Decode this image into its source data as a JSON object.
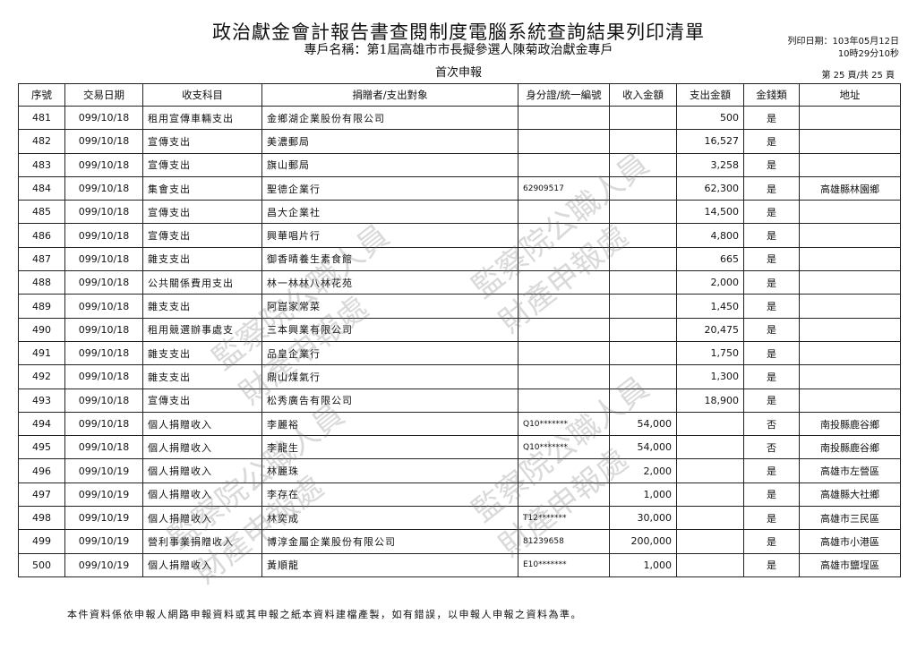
{
  "header": {
    "title": "政治獻金會計報告書查閱制度電腦系統查詢結果列印清單",
    "subtitle": "專戶名稱：第1屆高雄市市長擬參選人陳菊政治獻金專戶",
    "report_type": "首次申報",
    "print_date": "列印日期：103年05月12日",
    "print_time": "10時29分10秒",
    "page_info": "第 25 頁/共 25 頁"
  },
  "table": {
    "columns": [
      "序號",
      "交易日期",
      "收支科目",
      "捐贈者/支出對象",
      "身分證/統一編號",
      "收入金額",
      "支出金額",
      "金錢類",
      "地址"
    ],
    "rows": [
      [
        "481",
        "099/10/18",
        "租用宣傳車輛支出",
        "金鄉湖企業股份有限公司",
        "",
        "",
        "500",
        "是",
        ""
      ],
      [
        "482",
        "099/10/18",
        "宣傳支出",
        "美濃郵局",
        "",
        "",
        "16,527",
        "是",
        ""
      ],
      [
        "483",
        "099/10/18",
        "宣傳支出",
        "旗山郵局",
        "",
        "",
        "3,258",
        "是",
        ""
      ],
      [
        "484",
        "099/10/18",
        "集會支出",
        "聖德企業行",
        "62909517",
        "",
        "62,300",
        "是",
        "高雄縣林園鄉"
      ],
      [
        "485",
        "099/10/18",
        "宣傳支出",
        "昌大企業社",
        "",
        "",
        "14,500",
        "是",
        ""
      ],
      [
        "486",
        "099/10/18",
        "宣傳支出",
        "興華唱片行",
        "",
        "",
        "4,800",
        "是",
        ""
      ],
      [
        "487",
        "099/10/18",
        "雜支支出",
        "御香晴養生素食館",
        "",
        "",
        "665",
        "是",
        ""
      ],
      [
        "488",
        "099/10/18",
        "公共關係費用支出",
        "林一林林八林花苑",
        "",
        "",
        "2,000",
        "是",
        ""
      ],
      [
        "489",
        "099/10/18",
        "雜支支出",
        "阿崑家常菜",
        "",
        "",
        "1,450",
        "是",
        ""
      ],
      [
        "490",
        "099/10/18",
        "租用競選辦事處支",
        "三本興業有限公司",
        "",
        "",
        "20,475",
        "是",
        ""
      ],
      [
        "491",
        "099/10/18",
        "雜支支出",
        "品皇企業行",
        "",
        "",
        "1,750",
        "是",
        ""
      ],
      [
        "492",
        "099/10/18",
        "雜支支出",
        "鼎山煤氣行",
        "",
        "",
        "1,300",
        "是",
        ""
      ],
      [
        "493",
        "099/10/18",
        "宣傳支出",
        "松秀廣告有限公司",
        "",
        "",
        "18,900",
        "是",
        ""
      ],
      [
        "494",
        "099/10/18",
        "個人捐贈收入",
        "李麗裕",
        "Q10*******",
        "54,000",
        "",
        "否",
        "南投縣鹿谷鄉"
      ],
      [
        "495",
        "099/10/18",
        "個人捐贈收入",
        "李龍生",
        "Q10*******",
        "54,000",
        "",
        "否",
        "南投縣鹿谷鄉"
      ],
      [
        "496",
        "099/10/19",
        "個人捐贈收入",
        "林麗珠",
        "",
        "2,000",
        "",
        "是",
        "高雄市左營區"
      ],
      [
        "497",
        "099/10/19",
        "個人捐贈收入",
        "李存在",
        "",
        "1,000",
        "",
        "是",
        "高雄縣大社鄉"
      ],
      [
        "498",
        "099/10/19",
        "個人捐贈收入",
        "林奕成",
        "T12*******",
        "30,000",
        "",
        "是",
        "高雄市三民區"
      ],
      [
        "499",
        "099/10/19",
        "營利事業捐贈收入",
        "博淳金屬企業股份有限公司",
        "81239658",
        "200,000",
        "",
        "是",
        "高雄市小港區"
      ],
      [
        "500",
        "099/10/19",
        "個人捐贈收入",
        "黃順龍",
        "E10*******",
        "1,000",
        "",
        "是",
        "高雄市鹽埕區"
      ]
    ]
  },
  "footer": {
    "note": "本件資料係依申報人網路申報資料或其申報之紙本資料建檔產製，如有錯誤，以申報人申報之資料為準。"
  },
  "watermark": {
    "line1": "監察院公職人員",
    "line2": "財產申報處"
  }
}
